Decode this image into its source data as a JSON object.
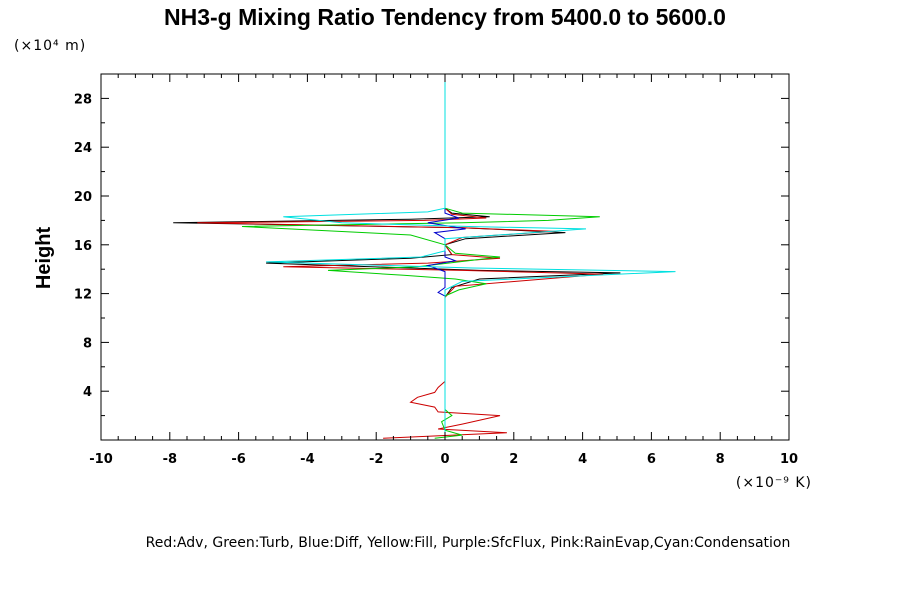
{
  "chart_data": {
    "type": "line",
    "title": "NH3-g Mixing Ratio Tendency from 5400.0 to 5600.0",
    "ylabel": "Height",
    "y_unit": "(×10⁴ m)",
    "x_unit": "(×10⁻⁹ K)",
    "xlim": [
      -10,
      10
    ],
    "ylim": [
      0,
      30
    ],
    "x_ticks": [
      -10,
      -8,
      -6,
      -4,
      -2,
      0,
      2,
      4,
      6,
      8,
      10
    ],
    "x_tick_labels": [
      "-10",
      "-8",
      "-6",
      "-4",
      "-2",
      "0",
      "2",
      "4",
      "6",
      "8",
      "10"
    ],
    "y_ticks": [
      4,
      8,
      12,
      16,
      20,
      24,
      28
    ],
    "y_tick_labels": [
      "4",
      "8",
      "12",
      "16",
      "20",
      "24",
      "28"
    ],
    "legend_text": "Red:Adv, Green:Turb, Blue:Diff, Yellow:Fill, Purple:SfcFlux, Pink:RainEvap,Cyan:Condensation",
    "series": [
      {
        "name": "Total",
        "color": "#000000",
        "points": [
          [
            0,
            0
          ],
          [
            0,
            11.7
          ],
          [
            0.2,
            12.5
          ],
          [
            1,
            13.2
          ],
          [
            5.1,
            13.7
          ],
          [
            1,
            13.9
          ],
          [
            -5.2,
            14.5
          ],
          [
            -1,
            14.9
          ],
          [
            0.2,
            15.2
          ],
          [
            0,
            16
          ],
          [
            0.6,
            16.5
          ],
          [
            3.5,
            17.0
          ],
          [
            0.5,
            17.4
          ],
          [
            -7.9,
            17.8
          ],
          [
            -1,
            18.1
          ],
          [
            1.3,
            18.3
          ],
          [
            0.2,
            18.6
          ],
          [
            0,
            19
          ],
          [
            0,
            30
          ]
        ]
      },
      {
        "name": "Adv",
        "color": "#cc0000",
        "points": [
          [
            -1.8,
            0.15
          ],
          [
            1.8,
            0.6
          ],
          [
            -0.2,
            0.9
          ],
          [
            0.5,
            1.3
          ],
          [
            1.6,
            2.0
          ],
          [
            -0.2,
            2.3
          ],
          [
            -0.3,
            2.7
          ],
          [
            -1.0,
            3.1
          ],
          [
            -0.8,
            3.5
          ],
          [
            -0.3,
            3.9
          ],
          [
            -0.2,
            4.3
          ],
          [
            0,
            4.8
          ],
          [
            0,
            11.7
          ],
          [
            0.3,
            12.6
          ],
          [
            4.6,
            13.6
          ],
          [
            0.5,
            13.9
          ],
          [
            -4.7,
            14.2
          ],
          [
            -0.5,
            14.5
          ],
          [
            1.6,
            14.9
          ],
          [
            0.2,
            15.2
          ],
          [
            0,
            16
          ],
          [
            0.5,
            16.6
          ],
          [
            3.2,
            17.1
          ],
          [
            0.5,
            17.4
          ],
          [
            -7.2,
            17.8
          ],
          [
            -0.6,
            18.0
          ],
          [
            1.2,
            18.2
          ],
          [
            0.2,
            18.5
          ],
          [
            0,
            19
          ]
        ]
      },
      {
        "name": "Turb",
        "color": "#00cc00",
        "points": [
          [
            -0.3,
            0.15
          ],
          [
            0.5,
            0.4
          ],
          [
            0,
            0.8
          ],
          [
            -0.1,
            1.5
          ],
          [
            0.2,
            2.0
          ],
          [
            0,
            2.5
          ],
          [
            0,
            4.8
          ],
          [
            0,
            11.8
          ],
          [
            0.4,
            12.3
          ],
          [
            1.2,
            12.8
          ],
          [
            0.3,
            13.2
          ],
          [
            -1.2,
            13.5
          ],
          [
            -3.4,
            13.9
          ],
          [
            -0.8,
            14.2
          ],
          [
            0.4,
            14.6
          ],
          [
            1.6,
            15.0
          ],
          [
            0.3,
            15.3
          ],
          [
            0,
            16
          ],
          [
            -1.0,
            16.8
          ],
          [
            -5.9,
            17.5
          ],
          [
            0.5,
            17.8
          ],
          [
            3.0,
            18.0
          ],
          [
            4.5,
            18.3
          ],
          [
            0.5,
            18.6
          ],
          [
            0,
            19
          ]
        ]
      },
      {
        "name": "Diff",
        "color": "#0000cc",
        "points": [
          [
            0,
            0
          ],
          [
            0,
            11.8
          ],
          [
            -0.2,
            12.1
          ],
          [
            0,
            12.5
          ],
          [
            0,
            13.8
          ],
          [
            -0.5,
            14.3
          ],
          [
            0.3,
            14.7
          ],
          [
            0,
            15
          ],
          [
            0,
            16.5
          ],
          [
            -0.3,
            17
          ],
          [
            0.6,
            17.3
          ],
          [
            -0.5,
            17.8
          ],
          [
            0.4,
            18.2
          ],
          [
            0,
            18.6
          ],
          [
            0,
            30
          ]
        ]
      },
      {
        "name": "Condensation",
        "color": "#00e0e0",
        "points": [
          [
            0,
            0
          ],
          [
            0,
            12.3
          ],
          [
            0.5,
            13.0
          ],
          [
            6.7,
            13.8
          ],
          [
            0.8,
            14.1
          ],
          [
            -5.2,
            14.6
          ],
          [
            -0.7,
            15.0
          ],
          [
            0,
            15.5
          ],
          [
            0,
            16.5
          ],
          [
            4.1,
            17.3
          ],
          [
            0.7,
            17.5
          ],
          [
            -3.0,
            17.8
          ],
          [
            -4.7,
            18.3
          ],
          [
            -0.5,
            18.7
          ],
          [
            0,
            19
          ],
          [
            0,
            30
          ]
        ]
      }
    ]
  }
}
